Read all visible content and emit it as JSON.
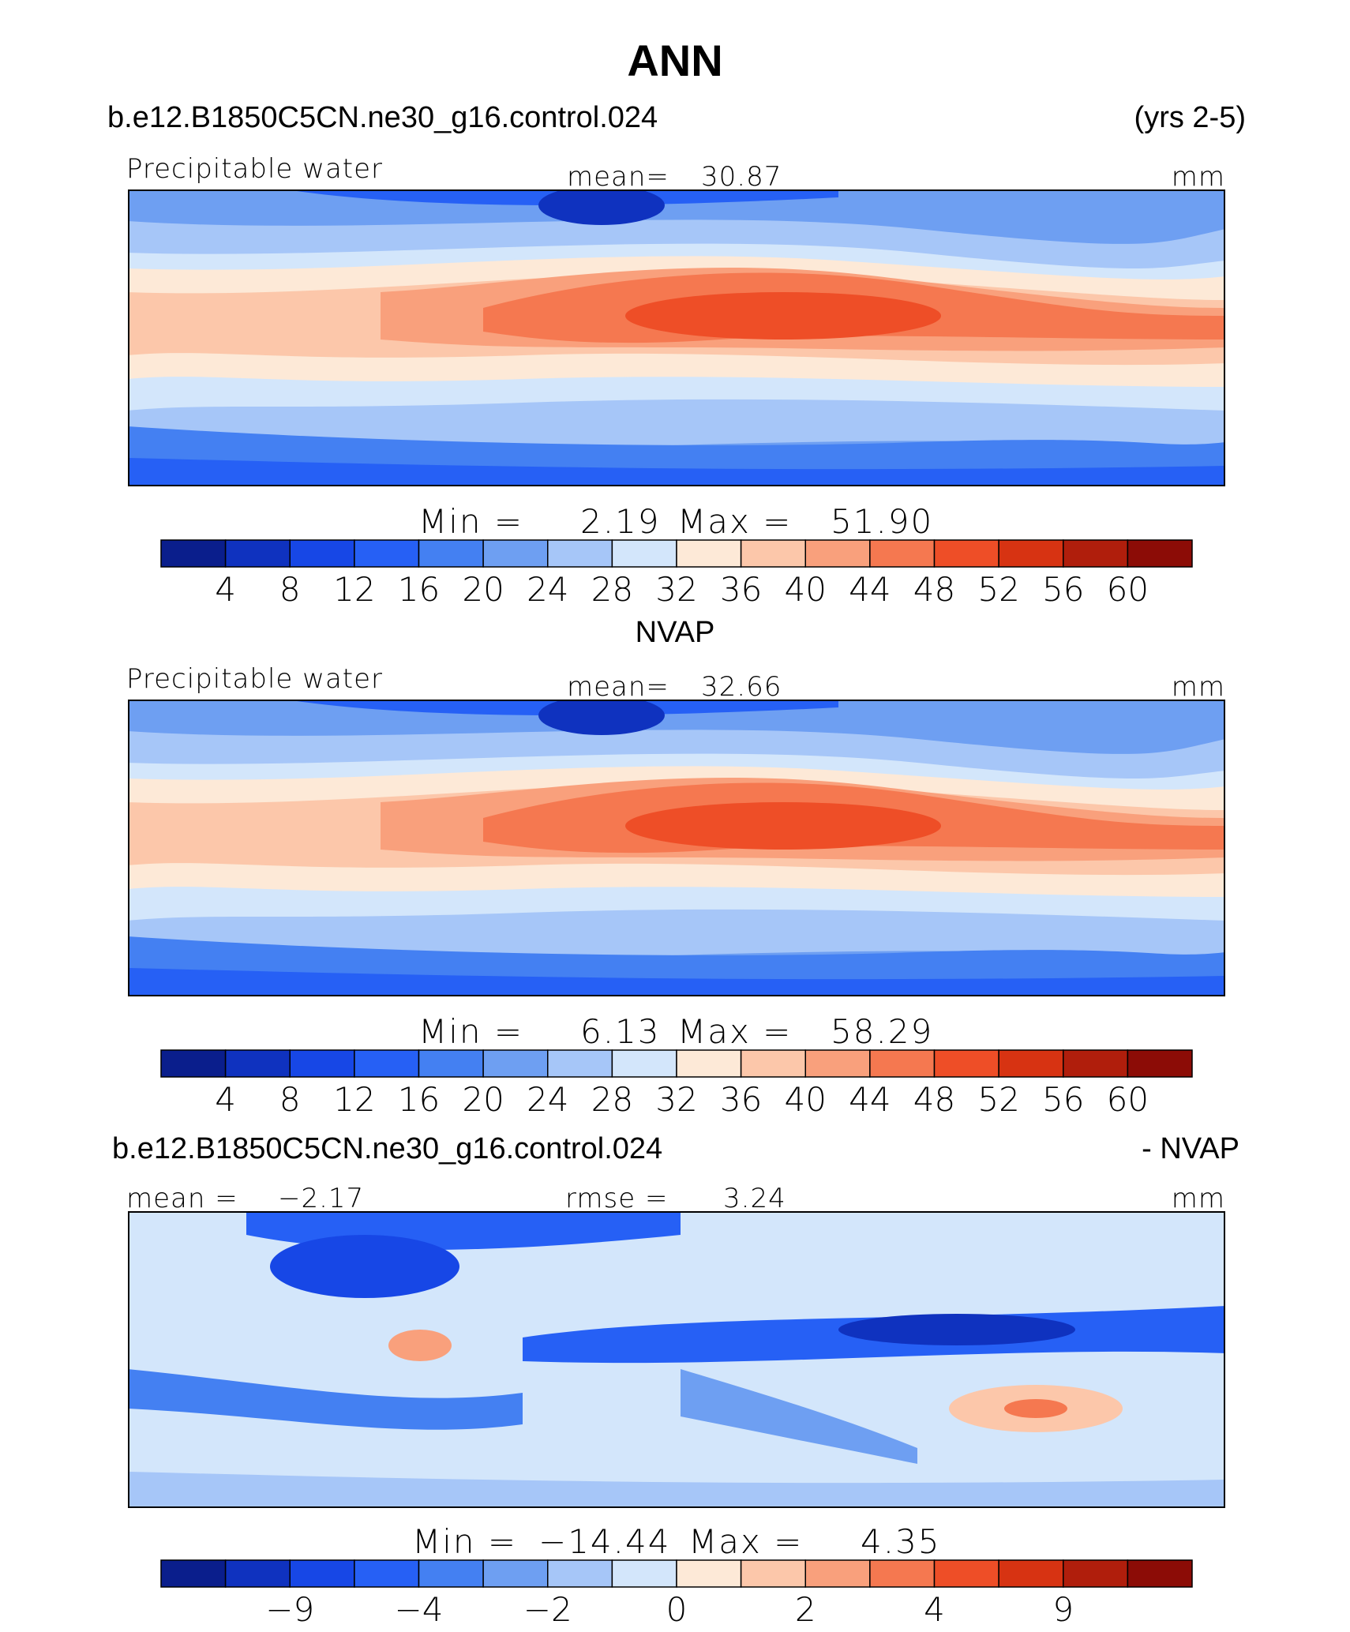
{
  "page": {
    "title": "ANN"
  },
  "chart_data": [
    {
      "type": "heatmap",
      "header_left": "b.e12.B1850C5CN.ne30_g16.control.024",
      "header_right": "(yrs 2-5)",
      "variable": "Precipitable water",
      "mean_label": "mean=",
      "mean": "30.87",
      "units": "mm",
      "min_label": "Min =",
      "min": "2.19",
      "max_label": "Max =",
      "max": "51.90",
      "colorbar": {
        "colors": [
          "#0a1e8c",
          "#0f32bf",
          "#1747e6",
          "#2660f5",
          "#4480f2",
          "#6e9ff2",
          "#a6c6f8",
          "#d3e6fb",
          "#fde9d7",
          "#fcc7aa",
          "#f9a07c",
          "#f57850",
          "#ee4e27",
          "#d73312",
          "#b01e0c",
          "#8c0c06"
        ],
        "ticks": [
          "4",
          "8",
          "12",
          "16",
          "20",
          "24",
          "28",
          "32",
          "36",
          "40",
          "44",
          "48",
          "52",
          "56",
          "60"
        ]
      }
    },
    {
      "type": "heatmap",
      "header_center": "NVAP",
      "variable": "Precipitable water",
      "mean_label": "mean=",
      "mean": "32.66",
      "units": "mm",
      "min_label": "Min =",
      "min": "6.13",
      "max_label": "Max =",
      "max": "58.29",
      "colorbar": {
        "colors": [
          "#0a1e8c",
          "#0f32bf",
          "#1747e6",
          "#2660f5",
          "#4480f2",
          "#6e9ff2",
          "#a6c6f8",
          "#d3e6fb",
          "#fde9d7",
          "#fcc7aa",
          "#f9a07c",
          "#f57850",
          "#ee4e27",
          "#d73312",
          "#b01e0c",
          "#8c0c06"
        ],
        "ticks": [
          "4",
          "8",
          "12",
          "16",
          "20",
          "24",
          "28",
          "32",
          "36",
          "40",
          "44",
          "48",
          "52",
          "56",
          "60"
        ]
      }
    },
    {
      "type": "heatmap",
      "header_left": "b.e12.B1850C5CN.ne30_g16.control.024",
      "header_right": "- NVAP",
      "mean_label": "mean =",
      "mean": "−2.17",
      "rmse_label": "rmse =",
      "rmse": "3.24",
      "units": "mm",
      "min_label": "Min =",
      "min": "−14.44",
      "max_label": "Max =",
      "max": "4.35",
      "colorbar": {
        "colors": [
          "#0a1e8c",
          "#0f32bf",
          "#1747e6",
          "#2660f5",
          "#4480f2",
          "#6e9ff2",
          "#a6c6f8",
          "#d3e6fb",
          "#fde9d7",
          "#fcc7aa",
          "#f9a07c",
          "#f57850",
          "#ee4e27",
          "#d73312",
          "#b01e0c",
          "#8c0c06"
        ],
        "ticks": [
          "−9",
          "",
          "−4",
          "",
          "−2",
          "",
          "0",
          "",
          "2",
          "",
          "4",
          "",
          "9"
        ]
      }
    }
  ]
}
